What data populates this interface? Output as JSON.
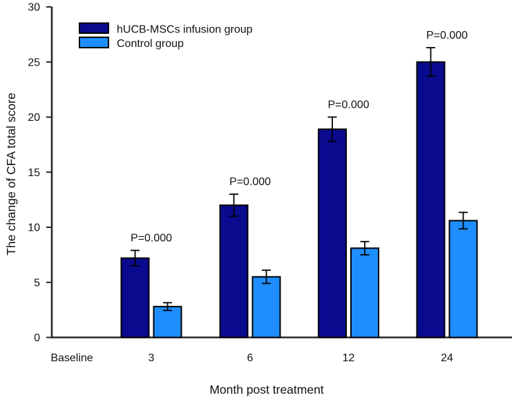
{
  "figure": {
    "background": "#ffffff",
    "text_color": "#111111",
    "axis_color": "#262626"
  },
  "chart_data": {
    "type": "bar",
    "title": "",
    "xlabel": "Month post treatment",
    "ylabel": "The change of CFA total score",
    "categories": [
      "Baseline",
      "3",
      "6",
      "12",
      "24"
    ],
    "series": [
      {
        "name": "hUCB-MSCs infusion group",
        "color": "#0a0a8f",
        "values": [
          null,
          7.2,
          12.0,
          18.9,
          25.0
        ],
        "errors": [
          null,
          0.7,
          1.0,
          1.1,
          1.3
        ]
      },
      {
        "name": "Control group",
        "color": "#1e8eff",
        "values": [
          null,
          2.8,
          5.5,
          8.1,
          10.6
        ],
        "errors": [
          null,
          0.35,
          0.6,
          0.6,
          0.75
        ]
      }
    ],
    "annotations": [
      {
        "category": "3",
        "text": "P=0.000"
      },
      {
        "category": "6",
        "text": "P=0.000"
      },
      {
        "category": "12",
        "text": "P=0.000"
      },
      {
        "category": "24",
        "text": "P=0.000"
      }
    ],
    "ylim": [
      0,
      30
    ],
    "yticks": [
      0,
      5,
      10,
      15,
      20,
      25,
      30
    ],
    "grid": false,
    "legend_position": "top-left",
    "error_bars": "symmetric"
  }
}
